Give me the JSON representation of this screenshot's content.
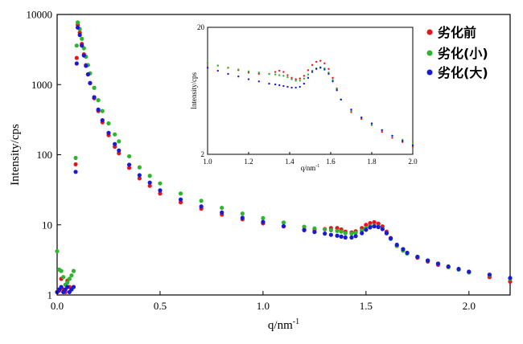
{
  "chart_data": [
    {
      "type": "scatter",
      "title": "",
      "xlabel": "q/nm",
      "xlabel_sup": "-1",
      "ylabel": "Intensity/cps",
      "xlim": [
        0.0,
        2.2
      ],
      "ylim": [
        1,
        10000
      ],
      "yscale": "log",
      "grid": false,
      "legend_position": "top-right",
      "xticks": [
        "0.0",
        "0.5",
        "1.0",
        "1.5",
        "2.0"
      ],
      "yticks": [
        "1",
        "10",
        "100",
        "1000",
        "10000"
      ],
      "series": [
        {
          "name": "劣化前",
          "color": "#e8141c",
          "x": [
            0.0,
            0.01,
            0.02,
            0.03,
            0.04,
            0.05,
            0.06,
            0.07,
            0.08,
            0.09,
            0.095,
            0.1,
            0.11,
            0.12,
            0.13,
            0.14,
            0.15,
            0.16,
            0.18,
            0.2,
            0.22,
            0.25,
            0.28,
            0.3,
            0.35,
            0.4,
            0.45,
            0.5,
            0.6,
            0.7,
            0.8,
            0.9,
            1.0,
            1.1,
            1.2,
            1.25,
            1.3,
            1.33,
            1.36,
            1.38,
            1.4,
            1.43,
            1.45,
            1.48,
            1.5,
            1.52,
            1.54,
            1.56,
            1.58,
            1.6,
            1.62,
            1.65,
            1.68,
            1.7,
            1.75,
            1.8,
            1.85,
            1.9,
            1.95,
            2.0,
            2.1,
            2.2
          ],
          "y": [
            1.1,
            1.15,
            1.7,
            1.2,
            1.1,
            1.6,
            1.3,
            1.2,
            1.3,
            73,
            2400,
            7100,
            5500,
            3800,
            2700,
            1900,
            1400,
            1050,
            640,
            420,
            290,
            190,
            130,
            105,
            65,
            46,
            36,
            28,
            21,
            17,
            14,
            12,
            10.5,
            9.5,
            8.6,
            8.5,
            8.7,
            9.0,
            9.0,
            8.6,
            8.0,
            7.8,
            8.1,
            9.0,
            10.0,
            10.6,
            10.9,
            10.4,
            9.5,
            8.0,
            6.5,
            5.0,
            4.3,
            3.9,
            3.4,
            3.0,
            2.7,
            2.5,
            2.3,
            2.1,
            1.8,
            1.55
          ]
        },
        {
          "name": "劣化(小)",
          "color": "#2db52d",
          "x": [
            0.0,
            0.01,
            0.02,
            0.03,
            0.04,
            0.05,
            0.06,
            0.07,
            0.08,
            0.09,
            0.095,
            0.1,
            0.11,
            0.12,
            0.13,
            0.14,
            0.15,
            0.16,
            0.18,
            0.2,
            0.22,
            0.25,
            0.28,
            0.3,
            0.35,
            0.4,
            0.45,
            0.5,
            0.6,
            0.7,
            0.8,
            0.9,
            1.0,
            1.1,
            1.2,
            1.25,
            1.3,
            1.33,
            1.36,
            1.38,
            1.4,
            1.43,
            1.45,
            1.48,
            1.5,
            1.52,
            1.54,
            1.56,
            1.58,
            1.6,
            1.62,
            1.65,
            1.68,
            1.7,
            1.75,
            1.8,
            1.85,
            1.9,
            1.95,
            2.0,
            2.1,
            2.2
          ],
          "y": [
            4.2,
            2.3,
            2.2,
            1.8,
            1.4,
            1.5,
            1.7,
            1.9,
            2.2,
            90,
            3600,
            7700,
            6200,
            4500,
            3300,
            2500,
            1900,
            1450,
            900,
            600,
            420,
            280,
            195,
            155,
            95,
            66,
            50,
            39,
            28,
            22,
            17.5,
            14.5,
            12.5,
            10.8,
            9.4,
            8.9,
            8.6,
            8.4,
            8.2,
            8.0,
            7.6,
            7.5,
            7.7,
            8.3,
            9.0,
            9.5,
            9.7,
            9.4,
            8.8,
            7.6,
            6.3,
            5.0,
            4.3,
            3.9,
            3.5,
            3.1,
            2.8,
            2.5,
            2.3,
            2.1,
            1.9,
            1.7
          ]
        },
        {
          "name": "劣化(大)",
          "color": "#1a1ad6",
          "x": [
            0.0,
            0.01,
            0.02,
            0.03,
            0.04,
            0.05,
            0.06,
            0.07,
            0.08,
            0.09,
            0.095,
            0.1,
            0.11,
            0.12,
            0.13,
            0.14,
            0.15,
            0.16,
            0.18,
            0.2,
            0.22,
            0.25,
            0.28,
            0.3,
            0.35,
            0.4,
            0.45,
            0.5,
            0.6,
            0.7,
            0.8,
            0.9,
            1.0,
            1.1,
            1.2,
            1.25,
            1.3,
            1.33,
            1.36,
            1.38,
            1.4,
            1.43,
            1.45,
            1.48,
            1.5,
            1.52,
            1.54,
            1.56,
            1.58,
            1.6,
            1.62,
            1.65,
            1.68,
            1.7,
            1.75,
            1.8,
            1.85,
            1.9,
            1.95,
            2.0,
            2.1,
            2.2
          ],
          "y": [
            1.1,
            1.2,
            1.3,
            1.1,
            1.2,
            1.3,
            1.1,
            1.2,
            1.3,
            57,
            2000,
            6500,
            5100,
            3600,
            2600,
            1850,
            1400,
            1050,
            660,
            440,
            310,
            205,
            142,
            115,
            72,
            51,
            40,
            31,
            23,
            18.3,
            15,
            12.6,
            11,
            9.6,
            8.4,
            7.9,
            7.5,
            7.2,
            7.0,
            6.8,
            6.6,
            6.6,
            6.9,
            7.6,
            8.5,
            9.2,
            9.5,
            9.3,
            8.7,
            7.6,
            6.4,
            5.2,
            4.5,
            4.0,
            3.5,
            3.1,
            2.8,
            2.55,
            2.35,
            2.15,
            1.95,
            1.75
          ]
        }
      ]
    },
    {
      "type": "scatter",
      "title": "",
      "xlabel": "q/nm",
      "xlabel_sup": "-1",
      "ylabel": "Intensity/cps",
      "xlim": [
        1.0,
        2.0
      ],
      "ylim": [
        2,
        20
      ],
      "yscale": "log",
      "grid": false,
      "legend_position": "none",
      "xticks": [
        "1.0",
        "1.2",
        "1.4",
        "1.6",
        "1.8",
        "2.0"
      ],
      "yticks": [
        "2",
        "20"
      ],
      "series": [
        {
          "name": "劣化前",
          "color": "#e8141c",
          "x": [
            1.0,
            1.05,
            1.1,
            1.15,
            1.2,
            1.25,
            1.3,
            1.33,
            1.35,
            1.37,
            1.39,
            1.41,
            1.43,
            1.45,
            1.47,
            1.49,
            1.51,
            1.53,
            1.55,
            1.57,
            1.59,
            1.61,
            1.63,
            1.65,
            1.7,
            1.75,
            1.8,
            1.85,
            1.9,
            1.95,
            2.0
          ],
          "y": [
            10.5,
            10.0,
            9.6,
            9.2,
            8.8,
            8.6,
            8.6,
            8.9,
            9.1,
            8.9,
            8.4,
            8.0,
            7.8,
            7.9,
            8.3,
            9.2,
            10.1,
            10.7,
            10.9,
            10.4,
            9.4,
            8.0,
            6.6,
            5.4,
            4.3,
            3.8,
            3.4,
            3.0,
            2.7,
            2.5,
            2.3
          ]
        },
        {
          "name": "劣化(小)",
          "color": "#2db52d",
          "x": [
            1.0,
            1.05,
            1.1,
            1.15,
            1.2,
            1.25,
            1.3,
            1.33,
            1.35,
            1.37,
            1.39,
            1.41,
            1.43,
            1.45,
            1.47,
            1.49,
            1.51,
            1.53,
            1.55,
            1.57,
            1.59,
            1.61,
            1.63,
            1.65,
            1.7,
            1.75,
            1.8,
            1.85,
            1.9,
            1.95,
            2.0
          ],
          "y": [
            10.5,
            10.0,
            9.6,
            9.3,
            9.0,
            8.8,
            8.6,
            8.5,
            8.4,
            8.3,
            8.1,
            7.8,
            7.6,
            7.6,
            7.9,
            8.5,
            9.1,
            9.5,
            9.7,
            9.5,
            8.8,
            7.7,
            6.5,
            5.4,
            4.4,
            3.9,
            3.4,
            3.1,
            2.8,
            2.6,
            2.4
          ]
        },
        {
          "name": "劣化(大)",
          "color": "#1a1ad6",
          "x": [
            1.0,
            1.05,
            1.1,
            1.15,
            1.2,
            1.25,
            1.3,
            1.33,
            1.35,
            1.37,
            1.39,
            1.41,
            1.43,
            1.45,
            1.47,
            1.49,
            1.51,
            1.53,
            1.55,
            1.57,
            1.59,
            1.61,
            1.63,
            1.65,
            1.7,
            1.75,
            1.8,
            1.85,
            1.9,
            1.95,
            2.0
          ],
          "y": [
            9.6,
            9.1,
            8.6,
            8.2,
            7.8,
            7.5,
            7.2,
            7.1,
            7.0,
            6.9,
            6.8,
            6.7,
            6.7,
            6.8,
            7.2,
            8.0,
            8.9,
            9.4,
            9.6,
            9.3,
            8.6,
            7.5,
            6.4,
            5.4,
            4.5,
            3.9,
            3.5,
            3.1,
            2.8,
            2.55,
            2.35
          ]
        }
      ]
    }
  ]
}
